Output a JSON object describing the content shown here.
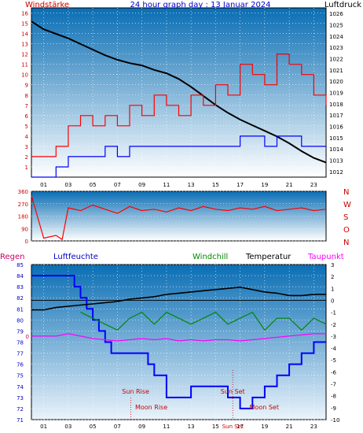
{
  "chart_data": [
    {
      "type": "line",
      "panel": "wind_pressure",
      "title": "24 hour graph day : 13 Januar 2024",
      "left_label": "Windstärke",
      "right_label": "Luftdruck",
      "x_ticks": [
        "01",
        "03",
        "05",
        "07",
        "09",
        "11",
        "13",
        "15",
        "17",
        "19",
        "21",
        "23"
      ],
      "x_range": [
        0,
        24
      ],
      "y_left_range": [
        0,
        16.5
      ],
      "y_left_ticks": [
        "1",
        "2",
        "3",
        "4",
        "5",
        "6",
        "7",
        "8",
        "9",
        "10",
        "11",
        "12",
        "13",
        "14",
        "15",
        "16"
      ],
      "y_right_range": [
        1011.5,
        1026.5
      ],
      "y_right_ticks": [
        "1012",
        "1013",
        "1014",
        "1015",
        "1016",
        "1017",
        "1018",
        "1019",
        "1020",
        "1021",
        "1022",
        "1023",
        "1024",
        "1025",
        "1026"
      ],
      "grid": true,
      "series": [
        {
          "name": "Luftdruck",
          "color": "#000000",
          "axis": "right",
          "x": [
            0,
            1,
            2,
            3,
            4,
            5,
            6,
            7,
            8,
            9,
            10,
            11,
            12,
            13,
            14,
            15,
            16,
            17,
            18,
            19,
            20,
            21,
            22,
            23,
            24
          ],
          "values": [
            1025.3,
            1024.6,
            1024.2,
            1023.8,
            1023.3,
            1022.8,
            1022.3,
            1021.9,
            1021.6,
            1021.4,
            1021.0,
            1020.7,
            1020.2,
            1019.5,
            1018.7,
            1017.9,
            1017.2,
            1016.6,
            1016.1,
            1015.6,
            1015.1,
            1014.5,
            1013.8,
            1013.2,
            1012.8
          ]
        },
        {
          "name": "Böen",
          "color": "#ff0000",
          "axis": "left",
          "x": [
            0,
            2,
            3,
            4,
            5,
            6,
            7,
            8,
            9,
            10,
            11,
            12,
            13,
            14,
            15,
            16,
            17,
            18,
            19,
            20,
            21,
            22,
            23,
            24
          ],
          "values": [
            2,
            3,
            5,
            6,
            5,
            6,
            5,
            7,
            6,
            8,
            7,
            6,
            8,
            7,
            9,
            8,
            11,
            10,
            9,
            12,
            11,
            10,
            8,
            7
          ]
        },
        {
          "name": "Wind",
          "color": "#0000ff",
          "axis": "left",
          "x": [
            0,
            2,
            3,
            4,
            5,
            6,
            7,
            8,
            9,
            10,
            11,
            12,
            13,
            14,
            15,
            16,
            17,
            18,
            19,
            20,
            21,
            22,
            23,
            24
          ],
          "values": [
            0,
            1,
            2,
            2,
            2,
            3,
            2,
            3,
            3,
            3,
            3,
            3,
            3,
            3,
            3,
            3,
            4,
            4,
            3,
            4,
            4,
            3,
            3,
            3
          ]
        }
      ]
    },
    {
      "type": "line",
      "panel": "wind_direction",
      "x_range": [
        0,
        24
      ],
      "y_range": [
        0,
        360
      ],
      "y_ticks": [
        "0",
        "90",
        "180",
        "270",
        "360"
      ],
      "compass_labels": [
        "N",
        "W",
        "S",
        "O",
        "N"
      ],
      "series": [
        {
          "name": "Windrichtung",
          "color": "#ff0000",
          "x": [
            0,
            1,
            2,
            2.5,
            3,
            4,
            5,
            6,
            7,
            8,
            9,
            10,
            11,
            12,
            13,
            14,
            15,
            16,
            17,
            18,
            19,
            20,
            21,
            22,
            23,
            24
          ],
          "values": [
            330,
            20,
            40,
            10,
            240,
            220,
            260,
            230,
            200,
            250,
            220,
            230,
            210,
            240,
            220,
            250,
            230,
            220,
            240,
            230,
            250,
            220,
            230,
            240,
            220,
            230
          ]
        }
      ]
    },
    {
      "type": "line",
      "panel": "humidity_temperature",
      "legend": [
        "Regen",
        "Luftfeuchte",
        "Windchill",
        "Temperatur",
        "Taupunkt"
      ],
      "legend_colors": [
        "#cc0066",
        "#0000cc",
        "#008800",
        "#000000",
        "#ff00ff"
      ],
      "x_ticks": [
        "01",
        "03",
        "05",
        "07",
        "09",
        "11",
        "13",
        "15",
        "17",
        "19",
        "21",
        "23"
      ],
      "x_range": [
        0,
        24
      ],
      "y_left_range": [
        71,
        85
      ],
      "y_left_ticks": [
        "71",
        "72",
        "73",
        "74",
        "75",
        "76",
        "77",
        "78",
        "79",
        "80",
        "81",
        "82",
        "83",
        "84",
        "85"
      ],
      "y_right_range": [
        -10,
        3
      ],
      "y_right_ticks": [
        "3",
        "2",
        "1",
        "0",
        "-1",
        "-2",
        "-3",
        "-4",
        "-5",
        "-6",
        "-7",
        "-8",
        "-9",
        "-10"
      ],
      "rain_zero_label": "0",
      "annotations": {
        "sun_rise": "Sun Rise",
        "sun_set": "Sun Set",
        "moon_rise": "Moon Rise",
        "moon_set": "Moon Set",
        "sun_set_time": "Sun Set"
      },
      "series": [
        {
          "name": "Luftfeuchte",
          "color": "#0000ff",
          "axis": "left",
          "x": [
            0,
            1,
            2,
            3,
            3.5,
            4,
            4.5,
            5,
            5.5,
            6,
            6.5,
            7,
            8,
            9,
            9.5,
            10,
            11,
            12,
            13,
            14,
            15,
            16,
            17,
            18,
            19,
            20,
            21,
            22,
            23,
            24
          ],
          "values": [
            84,
            84,
            84,
            84,
            83,
            82,
            81,
            80,
            79,
            78,
            77,
            77,
            77,
            77,
            76,
            75,
            73,
            73,
            74,
            74,
            74,
            73,
            72,
            73,
            74,
            75,
            76,
            77,
            78,
            78
          ]
        },
        {
          "name": "Temperatur",
          "color": "#000000",
          "axis": "right",
          "x": [
            0,
            1,
            2,
            3,
            4,
            5,
            6,
            7,
            8,
            9,
            10,
            11,
            12,
            13,
            14,
            15,
            16,
            17,
            18,
            19,
            20,
            21,
            22,
            23,
            24
          ],
          "values": [
            -0.8,
            -0.8,
            -0.6,
            -0.5,
            -0.4,
            -0.3,
            -0.2,
            -0.1,
            0.1,
            0.2,
            0.3,
            0.5,
            0.6,
            0.7,
            0.8,
            0.9,
            1.0,
            1.1,
            0.9,
            0.7,
            0.6,
            0.4,
            0.4,
            0.5,
            0.5
          ]
        },
        {
          "name": "Windchill",
          "color": "#008800",
          "axis": "right",
          "x": [
            4,
            5,
            6,
            7,
            8,
            9,
            10,
            11,
            12,
            13,
            14,
            15,
            16,
            17,
            18,
            19,
            20,
            21,
            22,
            23,
            24
          ],
          "values": [
            -1.0,
            -1.5,
            -2.0,
            -2.5,
            -1.5,
            -1.0,
            -2.0,
            -1.0,
            -1.5,
            -2.0,
            -1.5,
            -1.0,
            -2.0,
            -1.5,
            -1.0,
            -2.5,
            -1.5,
            -1.5,
            -2.5,
            -1.5,
            -2.0
          ]
        },
        {
          "name": "Taupunkt",
          "color": "#ff00ff",
          "axis": "right",
          "x": [
            0,
            2,
            3,
            4,
            5,
            6,
            7,
            8,
            9,
            10,
            11,
            12,
            13,
            14,
            15,
            16,
            17,
            18,
            19,
            20,
            21,
            22,
            23,
            24
          ],
          "values": [
            -3.0,
            -3.0,
            -2.8,
            -3.0,
            -3.2,
            -3.3,
            -3.4,
            -3.3,
            -3.2,
            -3.3,
            -3.2,
            -3.4,
            -3.3,
            -3.4,
            -3.3,
            -3.3,
            -3.4,
            -3.3,
            -3.2,
            -3.1,
            -3.0,
            -2.9,
            -2.8,
            -2.8
          ]
        }
      ]
    }
  ]
}
